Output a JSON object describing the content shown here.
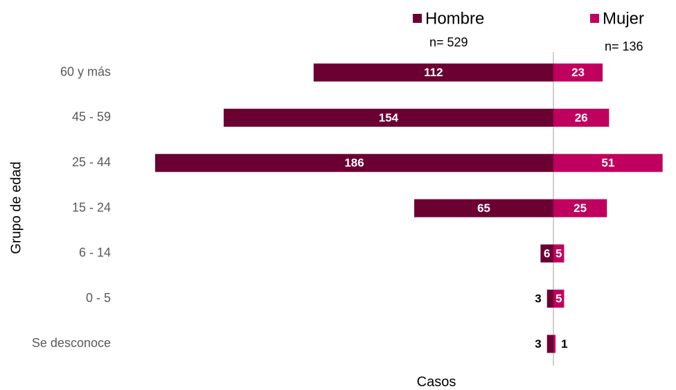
{
  "chart_data": {
    "type": "bar",
    "orientation": "butterfly",
    "categories": [
      "60 y más",
      "45 - 59",
      "25 - 44",
      "15 - 24",
      "6 - 14",
      "0 - 5",
      "Se desconoce"
    ],
    "series": [
      {
        "name": "Hombre",
        "note": "n= 529",
        "color": "#6b0033",
        "side": "left",
        "values": [
          112,
          154,
          186,
          65,
          6,
          3,
          3
        ]
      },
      {
        "name": "Mujer",
        "note": "n= 136",
        "color": "#c0005e",
        "side": "right",
        "values": [
          23,
          26,
          51,
          25,
          5,
          5,
          1
        ]
      }
    ],
    "xlim": [
      0,
      186
    ],
    "x_label": "Casos",
    "y_label": "Grupo de edad"
  }
}
